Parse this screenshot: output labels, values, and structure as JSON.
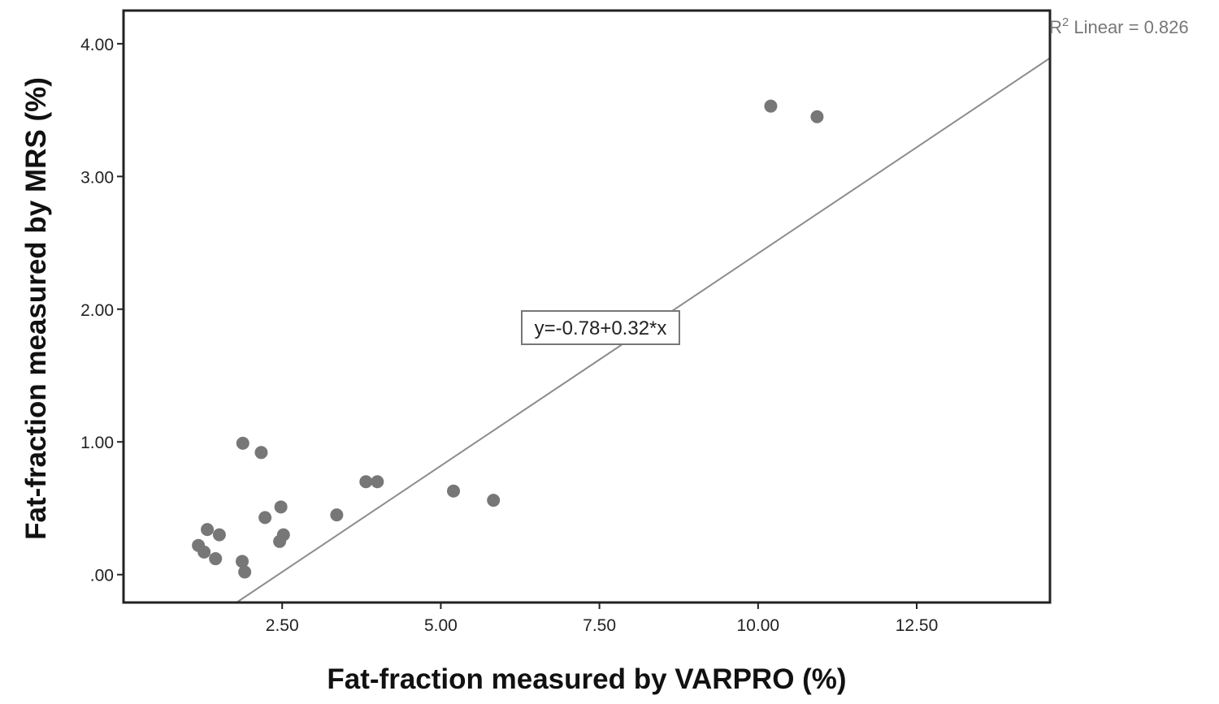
{
  "chart_data": {
    "type": "scatter",
    "title": "",
    "xlabel": "Fat-fraction measured by VARPRO (%)",
    "ylabel": "Fat-fraction measured by MRS (%)",
    "xlim": [
      0.0,
      14.6
    ],
    "ylim": [
      -0.21,
      4.25
    ],
    "x_ticks": [
      2.5,
      5.0,
      7.5,
      10.0,
      12.5
    ],
    "x_tick_labels": [
      "2.50",
      "5.00",
      "7.50",
      "10.00",
      "12.50"
    ],
    "y_ticks": [
      0,
      1,
      2,
      3,
      4
    ],
    "y_tick_labels": [
      ".00",
      "1.00",
      "2.00",
      "3.00",
      "4.00"
    ],
    "grid": false,
    "points": [
      {
        "x": 1.18,
        "y": 0.22
      },
      {
        "x": 1.27,
        "y": 0.17
      },
      {
        "x": 1.32,
        "y": 0.34
      },
      {
        "x": 1.45,
        "y": 0.12
      },
      {
        "x": 1.51,
        "y": 0.3
      },
      {
        "x": 1.88,
        "y": 0.99
      },
      {
        "x": 1.87,
        "y": 0.1
      },
      {
        "x": 1.91,
        "y": 0.02
      },
      {
        "x": 2.17,
        "y": 0.92
      },
      {
        "x": 2.23,
        "y": 0.43
      },
      {
        "x": 2.48,
        "y": 0.51
      },
      {
        "x": 2.46,
        "y": 0.25
      },
      {
        "x": 2.52,
        "y": 0.3
      },
      {
        "x": 3.36,
        "y": 0.45
      },
      {
        "x": 3.82,
        "y": 0.7
      },
      {
        "x": 4.0,
        "y": 0.7
      },
      {
        "x": 5.2,
        "y": 0.63
      },
      {
        "x": 5.83,
        "y": 0.56
      },
      {
        "x": 10.2,
        "y": 3.53
      },
      {
        "x": 10.93,
        "y": 3.45
      }
    ],
    "fit_line": {
      "intercept": -0.78,
      "slope": 0.32
    },
    "equation_label": "y=-0.78+0.32*x",
    "r2_label": {
      "prefix": "R",
      "sup": "2",
      "suffix": " Linear = 0.826"
    },
    "colors": {
      "marker": "#777777",
      "fit_line": "#8c8c8c",
      "frame": "#222222"
    }
  }
}
